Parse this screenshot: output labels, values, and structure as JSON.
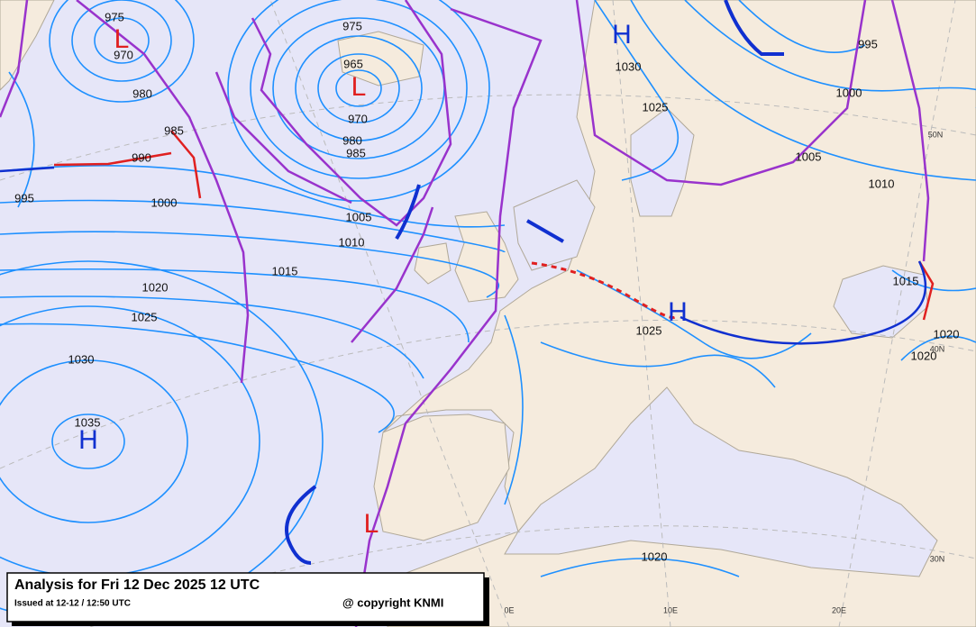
{
  "map": {
    "title": "Analysis for Fri 12 Dec 2025 12 UTC",
    "issued": "Issued at 12-12 / 12:50 UTC",
    "copyright": "@ copyright KNMI",
    "pressure_centers": [
      "L",
      "L",
      "H",
      "H",
      "H",
      "L"
    ],
    "isobar_labels": [
      975,
      970,
      980,
      985,
      990,
      995,
      1000,
      975,
      965,
      970,
      980,
      985,
      1005,
      1010,
      1015,
      1020,
      1025,
      1030,
      1035,
      1030,
      1025,
      995,
      1000,
      1005,
      1010,
      1025,
      1015,
      1020,
      1020,
      1020
    ],
    "grid_labels": [
      "50N",
      "40N",
      "30N",
      "0E",
      "10E",
      "20E"
    ]
  }
}
